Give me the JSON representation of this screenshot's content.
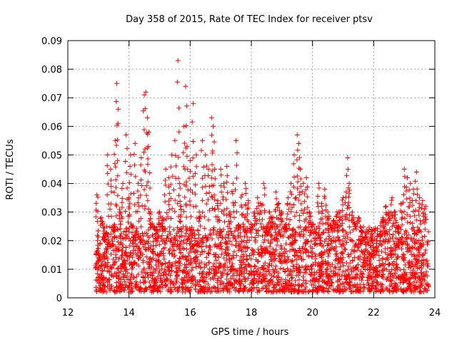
{
  "chart_data": {
    "type": "scatter",
    "title": "Day 358 of 2015, Rate Of TEC Index for receiver ptsv",
    "xlabel": "GPS time / hours",
    "ylabel": "ROTI / TECUs",
    "xlim": [
      12,
      24
    ],
    "ylim": [
      0,
      0.09
    ],
    "xticks": [
      12,
      14,
      16,
      18,
      20,
      22,
      24
    ],
    "xtick_labels": [
      "12",
      "14",
      "16",
      "18",
      "20",
      "22",
      "24"
    ],
    "yticks": [
      0,
      0.01,
      0.02,
      0.03,
      0.04,
      0.05,
      0.06,
      0.07,
      0.08,
      0.09
    ],
    "ytick_labels": [
      "0",
      "0.01",
      "0.02",
      "0.03",
      "0.04",
      "0.05",
      "0.06",
      "0.07",
      "0.08",
      "0.09"
    ],
    "grid": true,
    "marker": "+",
    "color": "#ff0000",
    "series": [
      {
        "name": "ROTI",
        "x": [
          12.95,
          13.0,
          13.1,
          13.2,
          13.3,
          13.4,
          13.5,
          13.55,
          13.6,
          13.65,
          13.7,
          13.8,
          13.9,
          14.0,
          14.05,
          14.1,
          14.2,
          14.3,
          14.4,
          14.5,
          14.55,
          14.6,
          14.65,
          14.7,
          14.8,
          14.9,
          15.0,
          15.1,
          15.2,
          15.3,
          15.4,
          15.5,
          15.6,
          15.65,
          15.7,
          15.8,
          15.85,
          15.9,
          16.0,
          16.1,
          16.2,
          16.3,
          16.4,
          16.5,
          16.6,
          16.7,
          16.75,
          16.8,
          16.9,
          17.0,
          17.1,
          17.2,
          17.3,
          17.4,
          17.5,
          17.6,
          17.7,
          17.8,
          17.9,
          18.0,
          18.1,
          18.2,
          18.3,
          18.4,
          18.5,
          18.6,
          18.7,
          18.8,
          18.9,
          19.0,
          19.1,
          19.2,
          19.3,
          19.4,
          19.5,
          19.55,
          19.6,
          19.7,
          19.8,
          19.9,
          20.0,
          20.1,
          20.2,
          20.3,
          20.4,
          20.5,
          20.6,
          20.7,
          20.8,
          20.9,
          21.0,
          21.1,
          21.15,
          21.2,
          21.3,
          21.4,
          21.5,
          21.6,
          21.7,
          21.8,
          21.9,
          22.0,
          22.1,
          22.2,
          22.3,
          22.4,
          22.5,
          22.6,
          22.7,
          22.8,
          22.9,
          23.0,
          23.1,
          23.2,
          23.3,
          23.4,
          23.5,
          23.6,
          23.7
        ],
        "y": [
          0.036,
          0.013,
          0.028,
          0.02,
          0.05,
          0.045,
          0.024,
          0.055,
          0.075,
          0.066,
          0.03,
          0.04,
          0.057,
          0.035,
          0.05,
          0.025,
          0.054,
          0.04,
          0.049,
          0.071,
          0.072,
          0.063,
          0.058,
          0.03,
          0.025,
          0.02,
          0.03,
          0.028,
          0.045,
          0.042,
          0.05,
          0.055,
          0.083,
          0.04,
          0.032,
          0.06,
          0.074,
          0.053,
          0.048,
          0.068,
          0.05,
          0.03,
          0.055,
          0.05,
          0.045,
          0.063,
          0.06,
          0.045,
          0.034,
          0.045,
          0.04,
          0.046,
          0.03,
          0.04,
          0.055,
          0.025,
          0.036,
          0.04,
          0.034,
          0.025,
          0.03,
          0.035,
          0.033,
          0.04,
          0.022,
          0.03,
          0.028,
          0.037,
          0.033,
          0.03,
          0.025,
          0.035,
          0.04,
          0.05,
          0.057,
          0.054,
          0.045,
          0.04,
          0.042,
          0.03,
          0.025,
          0.02,
          0.04,
          0.033,
          0.038,
          0.03,
          0.025,
          0.027,
          0.03,
          0.03,
          0.035,
          0.037,
          0.049,
          0.04,
          0.03,
          0.025,
          0.028,
          0.02,
          0.015,
          0.01,
          0.012,
          0.014,
          0.016,
          0.02,
          0.028,
          0.032,
          0.03,
          0.035,
          0.03,
          0.025,
          0.033,
          0.045,
          0.042,
          0.04,
          0.038,
          0.044,
          0.035,
          0.034,
          0.032
        ]
      }
    ],
    "dense_band": {
      "x_range": [
        12.9,
        23.8
      ],
      "y_range": [
        0.002,
        0.025
      ],
      "note": "dense cloud of points between 0.002 and 0.025 across the whole time span"
    }
  }
}
